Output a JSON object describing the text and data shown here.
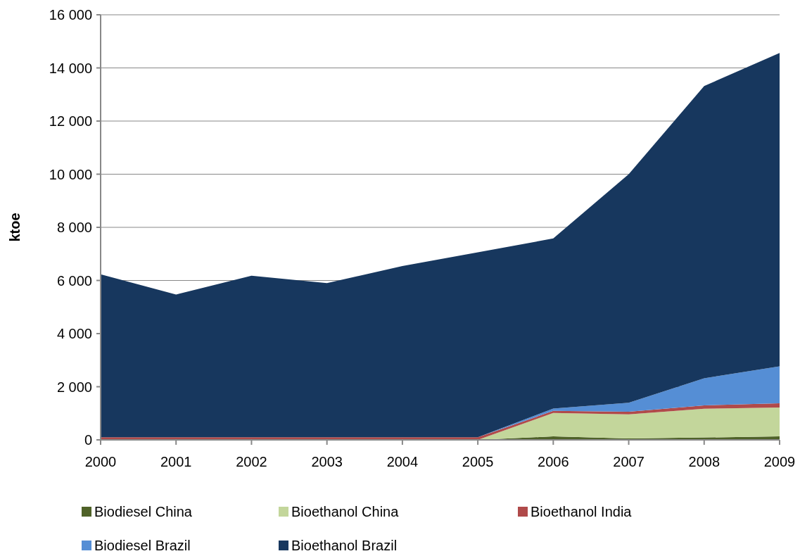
{
  "chart_data": {
    "type": "area",
    "stacked": true,
    "ylabel": "ktoe",
    "x": [
      2000,
      2001,
      2002,
      2003,
      2004,
      2005,
      2006,
      2007,
      2008,
      2009
    ],
    "series": [
      {
        "name": "Biodiesel China",
        "color": "#4f6228",
        "values": [
          0,
          0,
          0,
          0,
          0,
          0,
          130,
          50,
          90,
          130
        ]
      },
      {
        "name": "Bioethanol China",
        "color": "#c3d69b",
        "values": [
          0,
          0,
          0,
          0,
          0,
          0,
          880,
          910,
          1080,
          1090
        ]
      },
      {
        "name": "Bioethanol India",
        "color": "#b04a4a",
        "values": [
          100,
          100,
          100,
          100,
          100,
          100,
          80,
          100,
          130,
          160
        ]
      },
      {
        "name": "Biodiesel Brazil",
        "color": "#558ed5",
        "values": [
          0,
          0,
          0,
          0,
          0,
          0,
          90,
          340,
          1020,
          1390
        ]
      },
      {
        "name": "Bioethanol Brazil",
        "color": "#17375e",
        "values": [
          6130,
          5370,
          6080,
          5800,
          6440,
          6960,
          6400,
          8600,
          11000,
          11790
        ]
      }
    ],
    "xlim": [
      2000,
      2009
    ],
    "xticks": [
      2000,
      2001,
      2002,
      2003,
      2004,
      2005,
      2006,
      2007,
      2008,
      2009
    ],
    "ylim": [
      0,
      16000
    ],
    "yticks": [
      {
        "value": 0,
        "label": "0"
      },
      {
        "value": 2000,
        "label": "2 000"
      },
      {
        "value": 4000,
        "label": "4 000"
      },
      {
        "value": 6000,
        "label": "6 000"
      },
      {
        "value": 8000,
        "label": "8 000"
      },
      {
        "value": 10000,
        "label": "10 000"
      },
      {
        "value": 12000,
        "label": "12 000"
      },
      {
        "value": 14000,
        "label": "14 000"
      },
      {
        "value": 16000,
        "label": "16 000"
      }
    ],
    "grid": "y",
    "legend": "bottom"
  }
}
